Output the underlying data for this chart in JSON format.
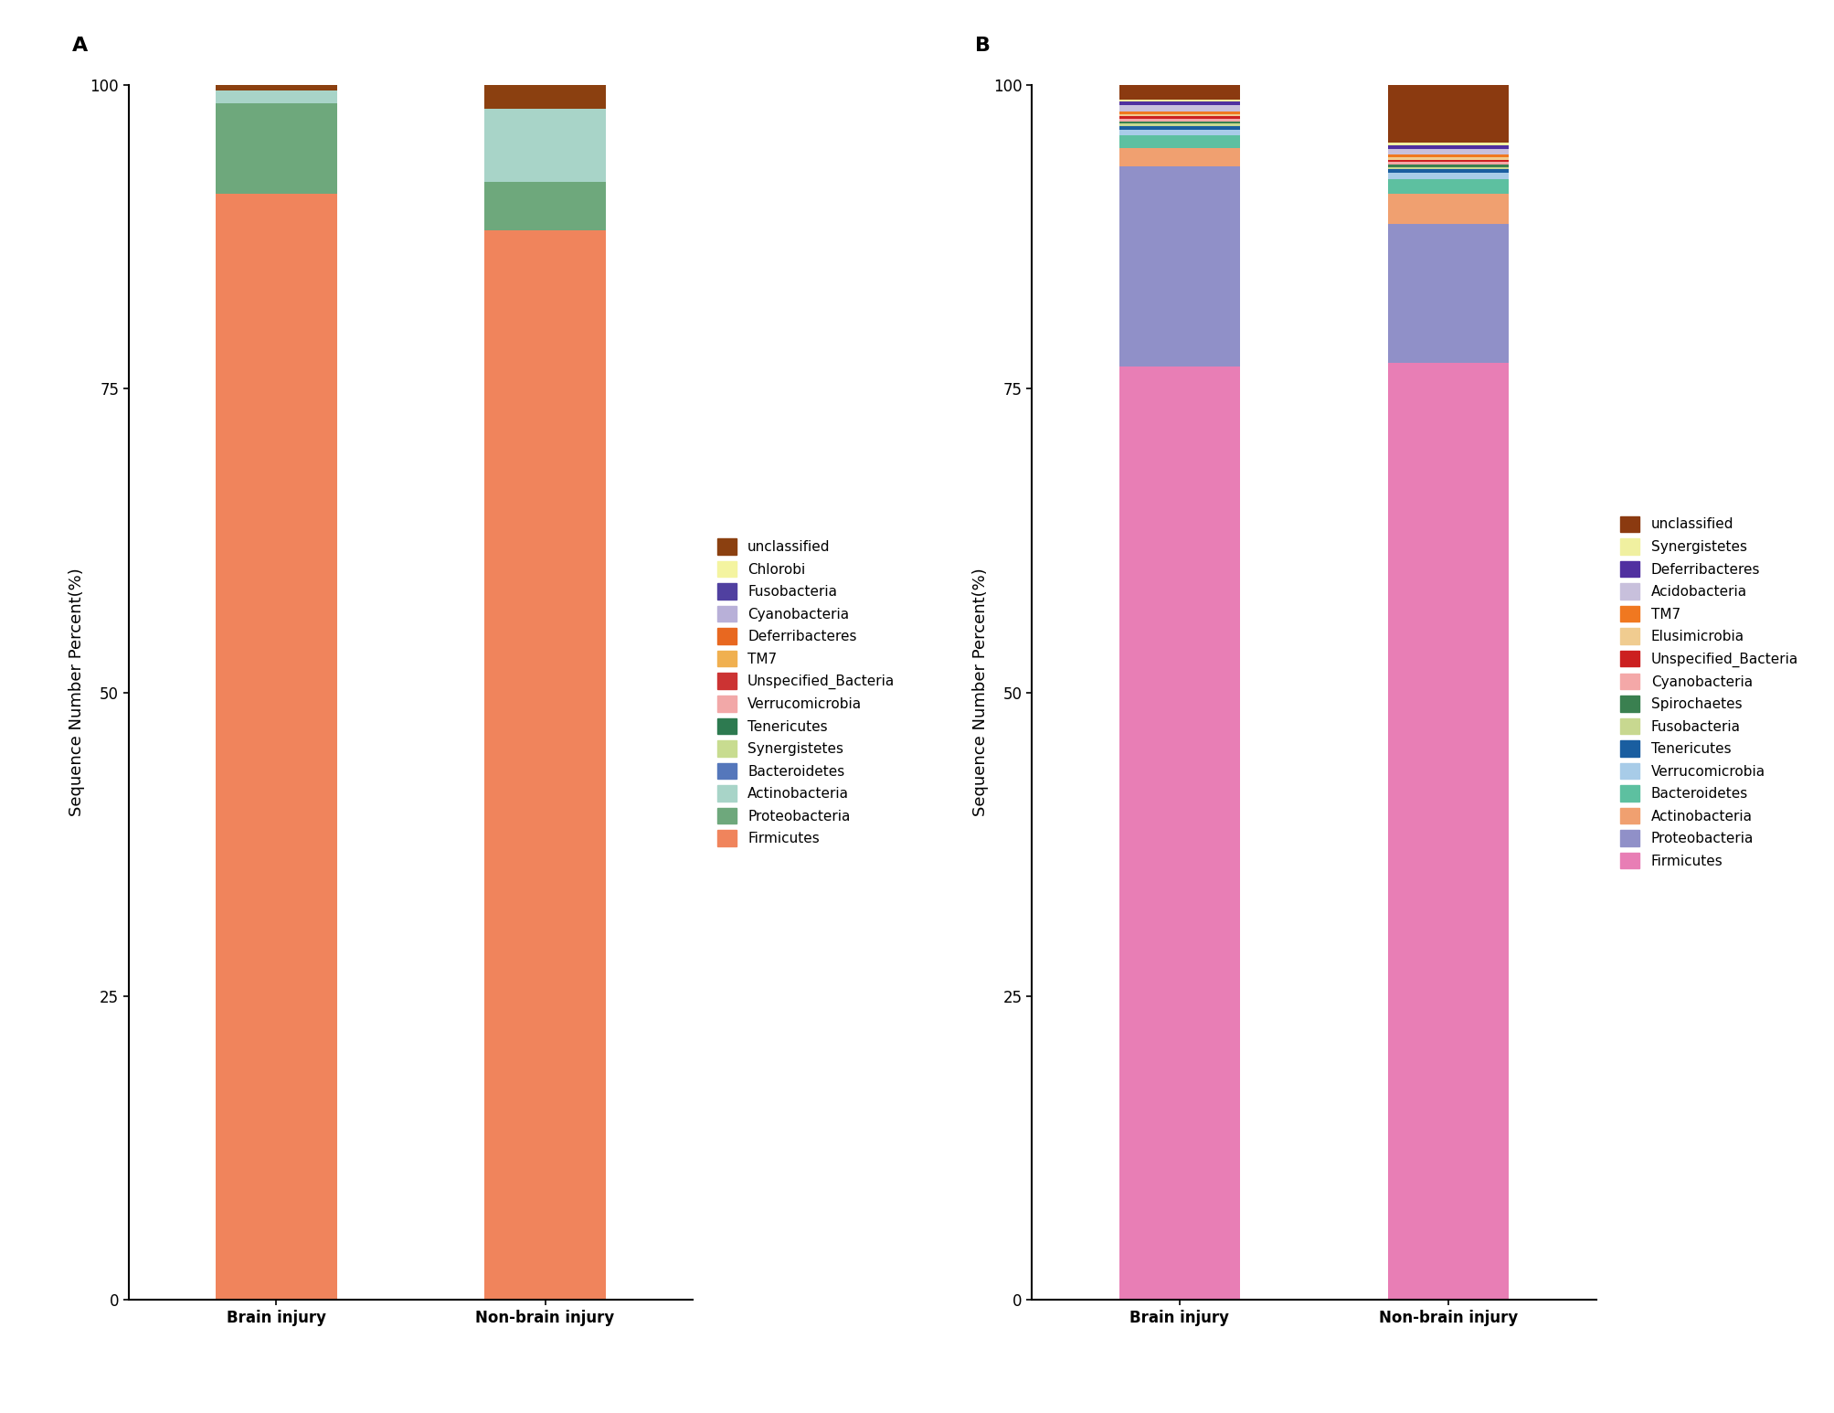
{
  "panel_A": {
    "categories": [
      "Brain injury",
      "Non-brain injury"
    ],
    "label": "A",
    "species_bottom_to_top": [
      "Firmicutes",
      "Proteobacteria",
      "Actinobacteria",
      "Bacteroidetes",
      "Synergistetes",
      "Tenericutes",
      "Verrucomicrobia",
      "Unspecified_Bacteria",
      "TM7",
      "Deferribacteres",
      "Cyanobacteria",
      "Fusobacteria",
      "Chlorobi",
      "unclassified"
    ],
    "colors_bottom_to_top": [
      "#F0845C",
      "#6EA87C",
      "#A8D4C8",
      "#5577BB",
      "#C8DC90",
      "#2D7A50",
      "#F2A8A8",
      "#CC3333",
      "#F0B050",
      "#E86820",
      "#B8B0D8",
      "#5040A0",
      "#F4F4A0",
      "#8B4010"
    ],
    "brain_injury": [
      91.0,
      7.5,
      1.0,
      0.0,
      0.0,
      0.0,
      0.0,
      0.0,
      0.0,
      0.0,
      0.0,
      0.0,
      0.0,
      0.5
    ],
    "non_brain_injury": [
      88.0,
      4.0,
      6.0,
      0.0,
      0.0,
      0.0,
      0.0,
      0.0,
      0.0,
      0.0,
      0.0,
      0.0,
      0.0,
      2.0
    ]
  },
  "panel_B": {
    "categories": [
      "Brain injury",
      "Non-brain injury"
    ],
    "label": "B",
    "species_bottom_to_top": [
      "Firmicutes",
      "Proteobacteria",
      "Actinobacteria",
      "Bacteroidetes",
      "Verrucomicrobia",
      "Tenericutes",
      "Fusobacteria",
      "Spirochaetes",
      "Cyanobacteria",
      "Unspecified_Bacteria",
      "Elusimicrobia",
      "TM7",
      "Acidobacteria",
      "Deferribacteres",
      "Synergistetes",
      "unclassified"
    ],
    "colors_bottom_to_top": [
      "#E87EB5",
      "#9090C8",
      "#F0A070",
      "#5DC0A0",
      "#A8CCE8",
      "#1A5EA0",
      "#C8D890",
      "#3A8050",
      "#F4A8A8",
      "#CC2020",
      "#F0CC90",
      "#F07820",
      "#C8C0DC",
      "#5030A0",
      "#F0F0A0",
      "#8B3A10"
    ],
    "brain_injury": [
      77.0,
      16.5,
      1.5,
      1.0,
      0.5,
      0.3,
      0.2,
      0.2,
      0.2,
      0.2,
      0.2,
      0.2,
      0.5,
      0.3,
      0.2,
      1.2
    ],
    "non_brain_injury": [
      77.5,
      11.5,
      2.5,
      1.2,
      0.5,
      0.3,
      0.2,
      0.2,
      0.2,
      0.2,
      0.2,
      0.2,
      0.5,
      0.3,
      0.2,
      4.8
    ]
  },
  "ylabel": "Sequence Number Percent(%)",
  "yticks": [
    0,
    25,
    50,
    75,
    100
  ],
  "background_color": "#FFFFFF",
  "bar_width": 0.45,
  "fontsize_label": 13,
  "fontsize_tick": 12,
  "fontsize_legend": 11,
  "fontsize_panel_label": 16
}
